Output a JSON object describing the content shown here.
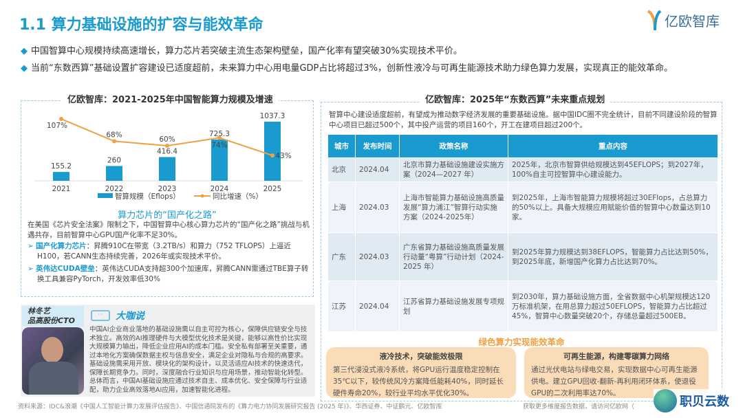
{
  "header": {
    "title": "1.1 算力基础设施的扩容与能效革命",
    "logo_text": "亿欧智库"
  },
  "bullets": [
    "中国智算中心规模持续高速增长，算力芯片若突破主流生态架构壁垒，国产化率有望突破30%实现技术平价。",
    "当前“东数西算”基础设置扩容建设已适度超前，未来算力中心用电量GDP占比将超过3%，创新性液冷与可再生能源技术助力绿色算力发展，实现真正的能效革命。"
  ],
  "chart_data": {
    "type": "bar",
    "title": "亿欧智库：2021-2025年中国智能算力规模及增速",
    "categories": [
      "2021",
      "2022",
      "2023",
      "2024",
      "2025"
    ],
    "series": [
      {
        "name": "智算规模（Eflops）",
        "type": "bar",
        "values": [
          155.2,
          260,
          416.4,
          725.3,
          1037.3
        ],
        "labels": [
          "155.2",
          "260",
          "416.4",
          "725.3",
          "1037.3"
        ]
      },
      {
        "name": "同比增速（%）",
        "type": "line",
        "values": [
          107,
          68,
          60,
          74,
          43
        ],
        "labels": [
          "107%",
          "68%",
          "60%",
          "74%",
          "43%"
        ]
      }
    ],
    "colors": {
      "bar": "#1a9bd0",
      "line": "#f0a040"
    },
    "legend": "bottom",
    "grid": false
  },
  "chips": {
    "title": "算力芯片的“国产化之路”",
    "intro": "在美国《芯片安全法案》限制之下，中国智算中心核心算力芯片的“国产化之路”挑战与机遇共存，目前智算中心GPU国产化率不足30%。",
    "items": [
      {
        "label": "国产化算力芯片",
        "text": "：昇腾910C在带宽（3.2TB/s）和算力（752 TFLOPS）上逼近H100，若CANN生态持续完善，2026年或实现技术平价。"
      },
      {
        "label": "英伟达CUDA壁垒",
        "text": "：英伟达CUDA支持超300个加速库，昇腾CANN需通过TBE算子转换工具兼容PyTorch，开发效率低30%"
      }
    ]
  },
  "quote": {
    "name": "林冬艺",
    "title": "品高股份CTO",
    "heading": "大咖说",
    "text": "中国AI企业商业落地的基础设施需以自主可控为核心，保障供应链安全与技术独立。高效的AI推理硬件与大模型优化技术是关键，能够以高性价比实现大规模算力输出，降低企业应用AI的成本门槛。安全私有部署至关重要，通过本地化方案确保数据主权与信息安全，满足企业对隐私与合规的高要求。基础设施需采用开放、模块化的架构设计，以灵活适应AI技术的快速迭代，保障长期竞争力。同时，深度融合行业知识与应用场景，推动智能化转型。总体而言，中国AI基础设施应通过技术自主、成本优化、安全保障与行业适配，助力企业高效落地AI应用，加速智能化进程。"
  },
  "plan": {
    "title": "亿欧智库：2025年“东数西算”未来重点规划",
    "intro": "智算中心建设适度超前，有望成为推动数字经济发展的重要基础设施。据中国IDC圈不完全统计，目前不同建设阶段的智算中心项目已超过500个，其中投产运营的项目160个，开工在建项目超过200个。",
    "columns": [
      "城市",
      "发布时间",
      "政策名称",
      "重点内容"
    ],
    "rows": [
      [
        "北京",
        "2024.04",
        "北京市算力基础设施建设实施方案（2024—2027 年）",
        "2025年，北京市智算供给规模达到45EFLOPS；到2027年，100%自主可控智算中心建设能力。"
      ],
      [
        "上海",
        "2024.03",
        "上海市智能算力基础设施高质量发展“算力浦江”智算行动实施方案（2024-2025年）",
        "到2025年，上海市智能算力规模将超过30EFlops，占总算力的50%以上。具备大规模应用赋能价值的智算中心数量达到10家。"
      ],
      [
        "广东",
        "2024.03",
        "广东省算力基础设施高质量发展行动蕫“粤算”行动计划（2024-2025 年）",
        "到2025年算力规模达到38EFLOPS，智能算力占比达到50%，到2025年底，新增国产化算力占比达到70%。"
      ],
      [
        "江苏",
        "2024.04",
        "江苏省算力基础设施发展专项规划",
        "到2030年，算力基础设施方面，全省数据中心机架规模达120 万标准机架，在用总算力超过50EFLOPS，智能算力占比超过45%，智算中心数量突破20个，存储总量超过500EB。"
      ]
    ]
  },
  "green": {
    "title": "绿色算力实现能效革命",
    "cards": [
      {
        "title": "液冷技术，突破能效极限",
        "text": "第三代浸没式液冷系统，将GPU运行温度稳定控制在35℃以下，较传统风冷方案降低能耗40%，同时延长硬件寿命20%，较行业平均水平优化30%。"
      },
      {
        "title": "可再生能源，构建零碳算力网络",
        "text": "通过光伏电站与绿电交易，实现数据中心可再生能源供电。建立GPU回收-翻新-再利用闭环体系，使退役GPU的二次利用率达70%。"
      }
    ]
  },
  "footer": {
    "source": "资料来源：IDC&浪潮《中国人工智能计算力发展评估报告》、中国信通院发布的《算力电力协同发展研究报告 (2025 年)》、华西证券、中证鹏元、亿欧智库",
    "more": "获取更多维度报告数据，请访问亿欧网（",
    "watermark": "职贝云数"
  }
}
